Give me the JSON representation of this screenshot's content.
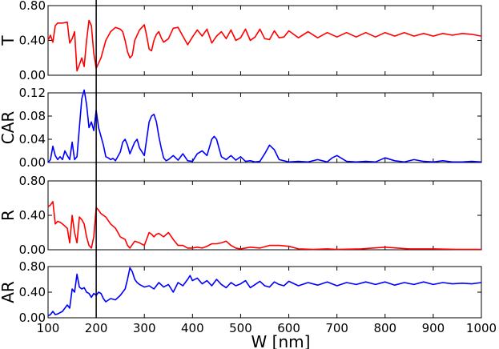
{
  "chart_data": [
    {
      "type": "line",
      "ylabel": "T",
      "ylim": [
        0,
        0.8
      ],
      "yticks": [
        0,
        0.4,
        0.8
      ],
      "ytick_labels": [
        "0.00",
        "0.40",
        "0.80"
      ],
      "series": [
        {
          "color": "#ff0000",
          "x": [
            100,
            105,
            110,
            115,
            120,
            130,
            140,
            145,
            150,
            155,
            160,
            165,
            170,
            175,
            180,
            185,
            190,
            195,
            200,
            210,
            220,
            230,
            240,
            250,
            255,
            260,
            265,
            270,
            275,
            280,
            290,
            300,
            305,
            310,
            315,
            320,
            325,
            330,
            335,
            340,
            350,
            360,
            370,
            380,
            390,
            400,
            410,
            420,
            430,
            440,
            450,
            460,
            470,
            480,
            490,
            500,
            510,
            520,
            530,
            540,
            550,
            560,
            570,
            580,
            590,
            600,
            620,
            640,
            660,
            680,
            700,
            720,
            740,
            760,
            780,
            800,
            820,
            840,
            860,
            880,
            900,
            920,
            940,
            960,
            980,
            1000
          ],
          "values": [
            0.4,
            0.46,
            0.38,
            0.57,
            0.6,
            0.6,
            0.61,
            0.37,
            0.42,
            0.5,
            0.05,
            0.12,
            0.2,
            0.1,
            0.4,
            0.63,
            0.57,
            0.25,
            0.08,
            0.2,
            0.4,
            0.5,
            0.55,
            0.53,
            0.5,
            0.4,
            0.27,
            0.2,
            0.23,
            0.4,
            0.52,
            0.58,
            0.45,
            0.3,
            0.28,
            0.4,
            0.47,
            0.5,
            0.43,
            0.38,
            0.42,
            0.54,
            0.55,
            0.45,
            0.35,
            0.44,
            0.52,
            0.45,
            0.53,
            0.37,
            0.45,
            0.5,
            0.42,
            0.52,
            0.4,
            0.43,
            0.53,
            0.4,
            0.44,
            0.53,
            0.42,
            0.41,
            0.51,
            0.43,
            0.44,
            0.51,
            0.43,
            0.5,
            0.43,
            0.49,
            0.44,
            0.49,
            0.44,
            0.49,
            0.44,
            0.49,
            0.45,
            0.49,
            0.45,
            0.48,
            0.45,
            0.48,
            0.46,
            0.48,
            0.47,
            0.45
          ]
        }
      ]
    },
    {
      "type": "line",
      "ylabel": "CAR",
      "ylim": [
        0,
        0.12
      ],
      "yticks": [
        0,
        0.04,
        0.08,
        0.12
      ],
      "ytick_labels": [
        "0.00",
        "0.04",
        "0.08",
        "0.12"
      ],
      "series": [
        {
          "color": "#0000ff",
          "x": [
            100,
            105,
            110,
            115,
            120,
            125,
            130,
            135,
            140,
            145,
            150,
            155,
            160,
            165,
            170,
            175,
            180,
            185,
            190,
            195,
            200,
            205,
            210,
            215,
            220,
            225,
            230,
            235,
            240,
            250,
            255,
            260,
            265,
            270,
            280,
            285,
            290,
            300,
            310,
            315,
            320,
            325,
            330,
            335,
            340,
            345,
            350,
            360,
            370,
            380,
            390,
            400,
            410,
            420,
            430,
            440,
            445,
            450,
            460,
            470,
            480,
            490,
            500,
            510,
            520,
            530,
            540,
            550,
            560,
            570,
            580,
            600,
            620,
            640,
            660,
            680,
            690,
            700,
            720,
            740,
            760,
            780,
            800,
            820,
            840,
            860,
            880,
            900,
            920,
            940,
            960,
            980,
            1000
          ],
          "values": [
            0.0,
            0.005,
            0.028,
            0.012,
            0.005,
            0.01,
            0.005,
            0.02,
            0.012,
            0.005,
            0.035,
            0.005,
            0.01,
            0.06,
            0.11,
            0.125,
            0.1,
            0.06,
            0.07,
            0.055,
            0.09,
            0.06,
            0.045,
            0.03,
            0.01,
            0.008,
            0.005,
            0.007,
            0.003,
            0.018,
            0.035,
            0.04,
            0.03,
            0.015,
            0.035,
            0.04,
            0.025,
            0.012,
            0.07,
            0.08,
            0.083,
            0.07,
            0.045,
            0.025,
            0.008,
            0.003,
            0.005,
            0.012,
            0.004,
            0.015,
            0.003,
            0.002,
            0.015,
            0.02,
            0.012,
            0.04,
            0.045,
            0.04,
            0.01,
            0.005,
            0.012,
            0.004,
            0.01,
            0.002,
            0.003,
            0.001,
            0.002,
            0.015,
            0.03,
            0.022,
            0.005,
            0.001,
            0.002,
            0.001,
            0.005,
            0.001,
            0.008,
            0.012,
            0.002,
            0.001,
            0.002,
            0.001,
            0.008,
            0.003,
            0.001,
            0.005,
            0.002,
            0.001,
            0.003,
            0.001,
            0.001,
            0.002,
            0.001
          ]
        }
      ]
    },
    {
      "type": "line",
      "ylabel": "R",
      "ylim": [
        0,
        0.8
      ],
      "yticks": [
        0,
        0.4,
        0.8
      ],
      "ytick_labels": [
        "0.00",
        "0.40",
        "0.80"
      ],
      "series": [
        {
          "color": "#ff0000",
          "x": [
            100,
            105,
            110,
            115,
            120,
            125,
            130,
            140,
            145,
            150,
            155,
            160,
            165,
            170,
            175,
            180,
            185,
            190,
            195,
            200,
            205,
            210,
            220,
            230,
            240,
            250,
            260,
            265,
            270,
            280,
            290,
            300,
            310,
            315,
            320,
            325,
            330,
            340,
            350,
            360,
            370,
            380,
            390,
            400,
            410,
            420,
            430,
            440,
            450,
            460,
            470,
            480,
            490,
            500,
            520,
            540,
            560,
            580,
            600,
            620,
            650,
            680,
            700,
            750,
            800,
            850,
            900,
            950,
            1000
          ],
          "values": [
            0.5,
            0.52,
            0.56,
            0.3,
            0.33,
            0.32,
            0.3,
            0.25,
            0.08,
            0.4,
            0.2,
            0.08,
            0.38,
            0.35,
            0.3,
            0.15,
            0.05,
            0.02,
            0.15,
            0.49,
            0.46,
            0.42,
            0.38,
            0.3,
            0.25,
            0.15,
            0.12,
            0.05,
            0.02,
            0.1,
            0.08,
            0.05,
            0.2,
            0.18,
            0.15,
            0.18,
            0.19,
            0.15,
            0.2,
            0.12,
            0.05,
            0.05,
            0.02,
            0.02,
            0.03,
            0.02,
            0.04,
            0.07,
            0.07,
            0.08,
            0.1,
            0.05,
            0.02,
            0.01,
            0.03,
            0.02,
            0.05,
            0.05,
            0.04,
            0.01,
            0.005,
            0.01,
            0.005,
            0.01,
            0.03,
            0.01,
            0.01,
            0.005,
            0.005
          ]
        }
      ]
    },
    {
      "type": "line",
      "ylabel": "AR",
      "xlabel": "W [nm]",
      "xlim": [
        100,
        1000
      ],
      "xticks": [
        100,
        200,
        300,
        400,
        500,
        600,
        700,
        800,
        900,
        1000
      ],
      "ylim": [
        0,
        0.8
      ],
      "yticks": [
        0,
        0.4,
        0.8
      ],
      "ytick_labels": [
        "0.00",
        "0.40",
        "0.80"
      ],
      "series": [
        {
          "color": "#0000ff",
          "x": [
            100,
            105,
            110,
            115,
            120,
            130,
            140,
            145,
            150,
            155,
            160,
            165,
            170,
            175,
            180,
            185,
            190,
            195,
            200,
            205,
            210,
            215,
            220,
            230,
            240,
            250,
            260,
            265,
            270,
            275,
            280,
            285,
            290,
            300,
            310,
            320,
            330,
            340,
            350,
            360,
            370,
            380,
            390,
            395,
            400,
            410,
            420,
            430,
            440,
            450,
            460,
            470,
            480,
            490,
            500,
            510,
            520,
            530,
            540,
            550,
            560,
            570,
            580,
            590,
            600,
            620,
            640,
            660,
            680,
            700,
            720,
            740,
            760,
            780,
            800,
            820,
            840,
            860,
            880,
            900,
            920,
            940,
            960,
            980,
            1000
          ],
          "values": [
            0.03,
            0.05,
            0.1,
            0.05,
            0.06,
            0.1,
            0.2,
            0.15,
            0.45,
            0.4,
            0.68,
            0.48,
            0.45,
            0.47,
            0.4,
            0.38,
            0.32,
            0.38,
            0.35,
            0.4,
            0.38,
            0.3,
            0.25,
            0.3,
            0.28,
            0.35,
            0.45,
            0.6,
            0.78,
            0.72,
            0.6,
            0.55,
            0.52,
            0.48,
            0.5,
            0.45,
            0.55,
            0.48,
            0.52,
            0.4,
            0.55,
            0.5,
            0.6,
            0.66,
            0.58,
            0.62,
            0.53,
            0.58,
            0.5,
            0.6,
            0.52,
            0.47,
            0.55,
            0.5,
            0.53,
            0.58,
            0.47,
            0.52,
            0.57,
            0.5,
            0.48,
            0.56,
            0.52,
            0.5,
            0.57,
            0.5,
            0.55,
            0.51,
            0.56,
            0.5,
            0.55,
            0.52,
            0.56,
            0.52,
            0.56,
            0.51,
            0.55,
            0.52,
            0.56,
            0.52,
            0.55,
            0.53,
            0.54,
            0.53,
            0.55
          ]
        }
      ]
    }
  ],
  "xtick_labels": [
    "100",
    "200",
    "300",
    "400",
    "500",
    "600",
    "700",
    "800",
    "900",
    "1000"
  ],
  "marker_line_x": 200
}
